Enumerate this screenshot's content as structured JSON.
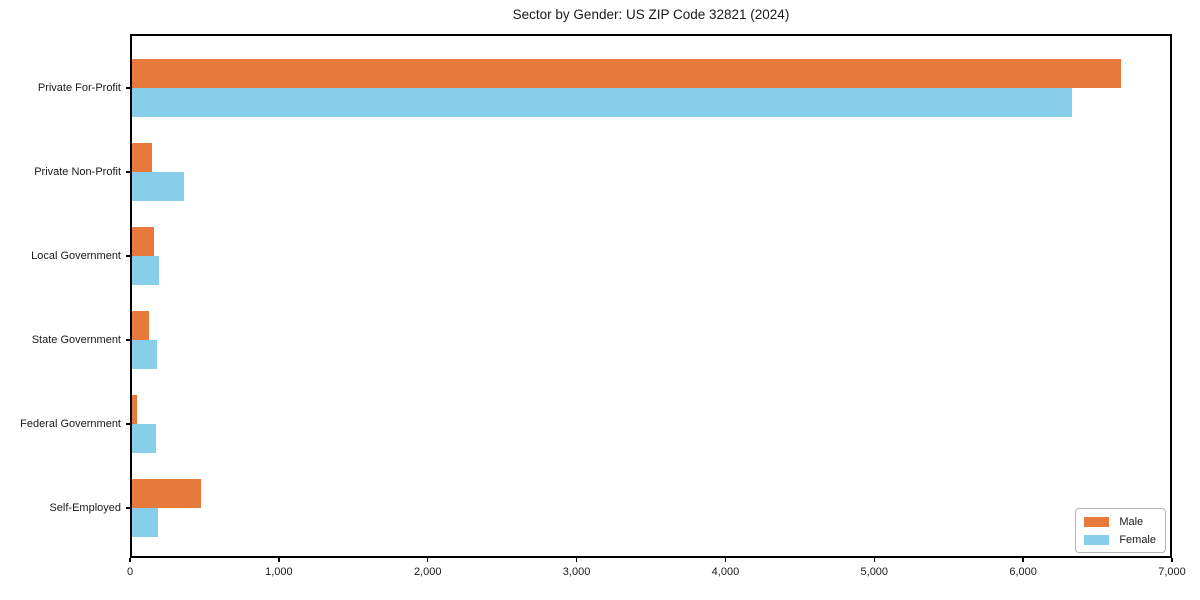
{
  "title": "Sector by Gender: US ZIP Code 32821 (2024)",
  "colors": {
    "male": "#e8793d",
    "female": "#87ceeb",
    "spine": "#000000",
    "tick_text": "#1a1a1a",
    "legend_border": "#b3b3b3"
  },
  "legend": {
    "items": [
      {
        "label": "Male",
        "color": "#e8793d"
      },
      {
        "label": "Female",
        "color": "#87ceeb"
      }
    ]
  },
  "chart_data": {
    "type": "bar",
    "orientation": "horizontal",
    "title": "Sector by Gender: US ZIP Code 32821 (2024)",
    "categories": [
      "Private For-Profit",
      "Private Non-Profit",
      "Local Government",
      "State Government",
      "Federal Government",
      "Self-Employed"
    ],
    "series": [
      {
        "name": "Male",
        "color": "#e8793d",
        "values": [
          6660,
          145,
          160,
          130,
          45,
          475
        ]
      },
      {
        "name": "Female",
        "color": "#87ceeb",
        "values": [
          6330,
          365,
          195,
          180,
          175,
          190
        ]
      }
    ],
    "xlim": [
      0,
      7000
    ],
    "xticks": [
      0,
      1000,
      2000,
      3000,
      4000,
      5000,
      6000,
      7000
    ],
    "xtick_labels": [
      "0",
      "1,000",
      "2,000",
      "3,000",
      "4,000",
      "5,000",
      "6,000",
      "7,000"
    ],
    "ylabel": "",
    "xlabel": "",
    "legend_position": "lower right",
    "grid": false
  }
}
